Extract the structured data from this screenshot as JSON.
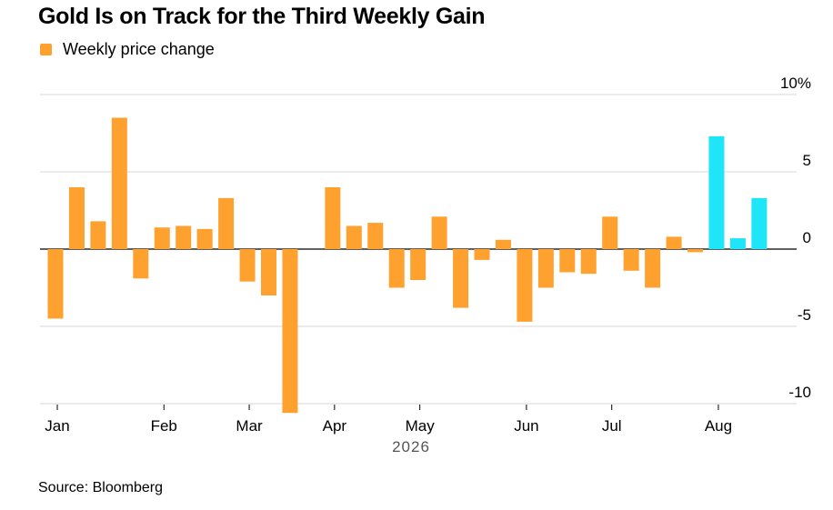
{
  "title": "Gold Is on Track for the Third Weekly Gain",
  "legend": {
    "label": "Weekly price change",
    "color": "#ffa12e"
  },
  "source": "Source: Bloomberg",
  "chart_data": {
    "type": "bar",
    "title": "Gold Is on Track for the Third Weekly Gain",
    "ylabel": "",
    "xlabel": "2026",
    "ylim": [
      -10,
      10
    ],
    "yticks": [
      {
        "value": 10,
        "label": "10%"
      },
      {
        "value": 5,
        "label": "5"
      },
      {
        "value": 0,
        "label": "0"
      },
      {
        "value": -5,
        "label": "-5"
      },
      {
        "value": -10,
        "label": "-10"
      }
    ],
    "month_ticks": [
      {
        "label": "Jan",
        "week": 0
      },
      {
        "label": "Feb",
        "week": 5
      },
      {
        "label": "Mar",
        "week": 9
      },
      {
        "label": "Apr",
        "week": 13
      },
      {
        "label": "May",
        "week": 17
      },
      {
        "label": "Jun",
        "week": 22
      },
      {
        "label": "Jul",
        "week": 26
      },
      {
        "label": "Aug",
        "week": 31
      }
    ],
    "year_label": "2026",
    "colors": {
      "default": "#ffa12e",
      "highlight": "#1ee5f7"
    },
    "series": [
      {
        "name": "Weekly price change",
        "values": [
          -4.5,
          4.0,
          1.8,
          8.5,
          -1.9,
          1.4,
          1.5,
          1.3,
          3.3,
          -2.1,
          -3.0,
          -10.6,
          0,
          4.0,
          1.5,
          1.7,
          -2.5,
          -2.0,
          2.1,
          -3.8,
          -0.7,
          0.6,
          -4.7,
          -2.5,
          -1.5,
          -1.6,
          2.1,
          -1.4,
          -2.5,
          0.8,
          -0.2,
          7.3,
          0.7,
          3.3
        ],
        "highlight_from": 31
      }
    ]
  }
}
